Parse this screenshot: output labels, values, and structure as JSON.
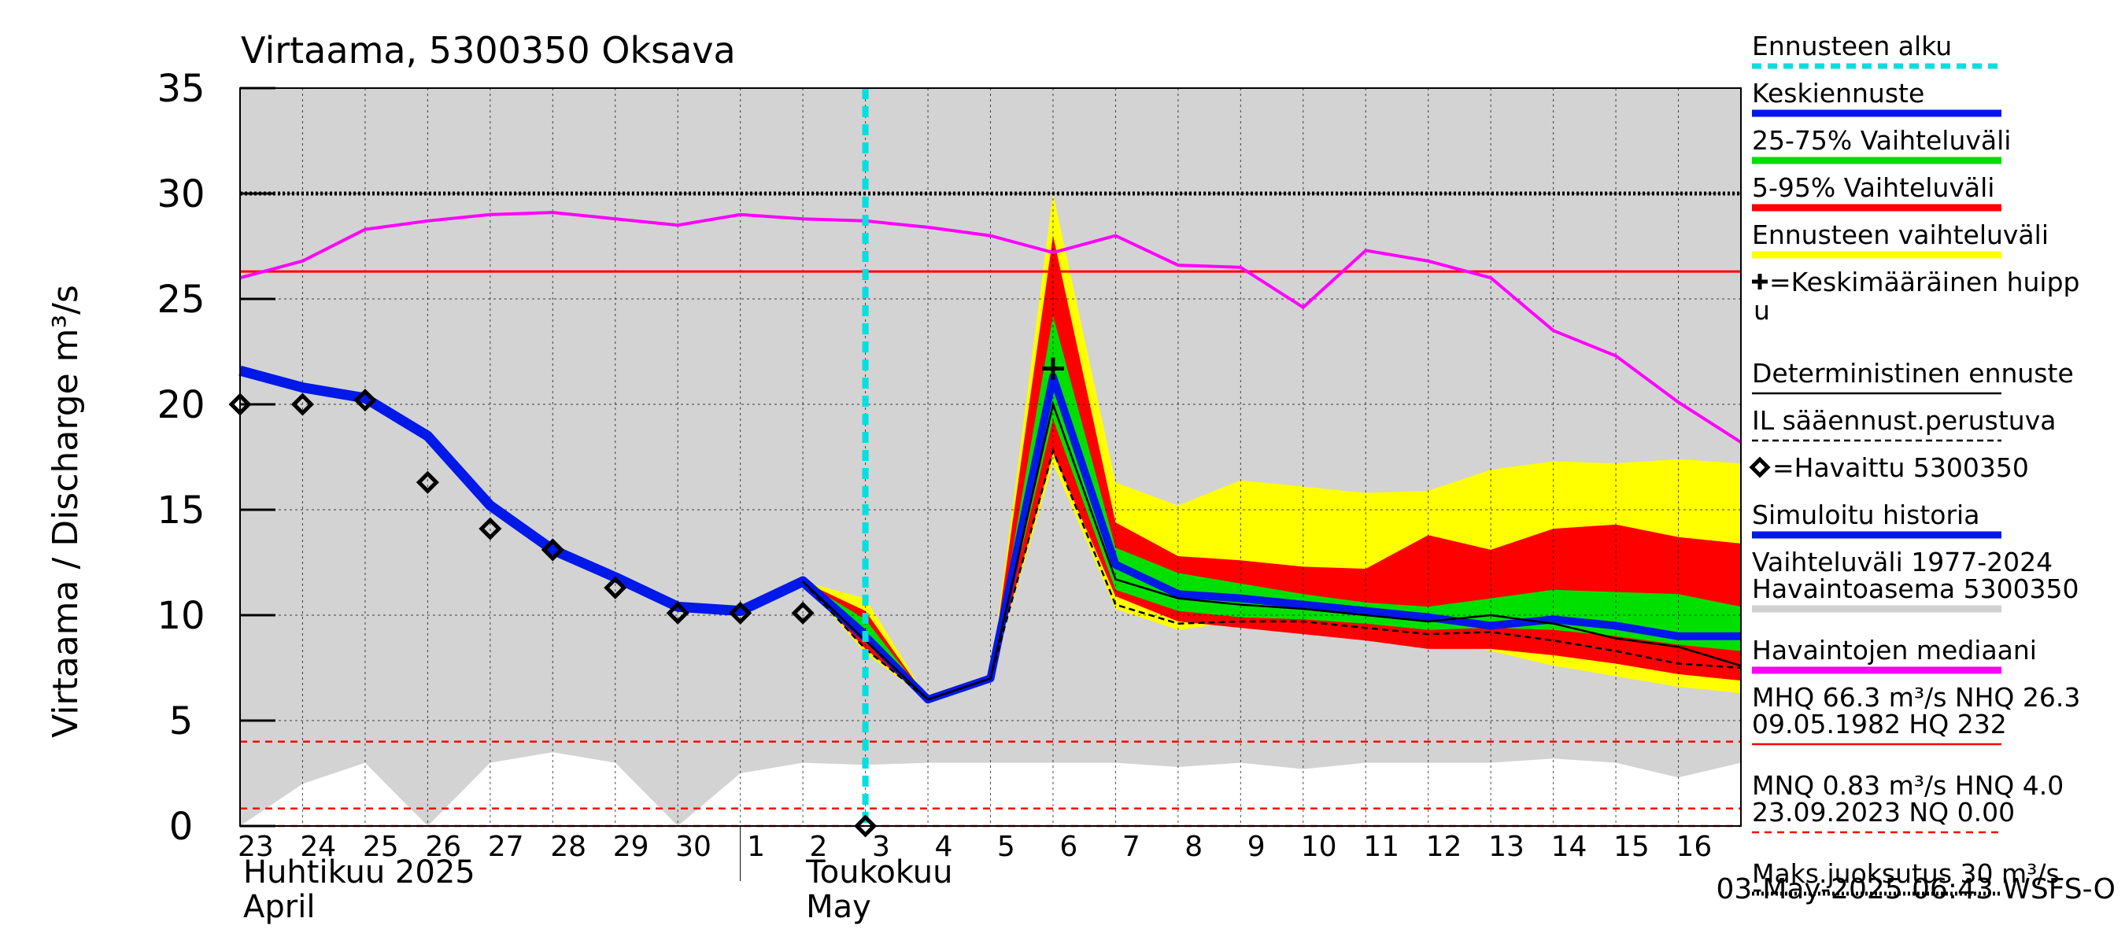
{
  "chart_data": {
    "type": "line",
    "title": "Virtaama, 5300350 Oksava",
    "ylabel": "Virtaama / Discharge   m³/s",
    "ylim": [
      0,
      35
    ],
    "yticks": [
      0,
      5,
      10,
      15,
      20,
      25,
      30,
      35
    ],
    "xlim_day_index": [
      0,
      24
    ],
    "x_day_labels": [
      "23",
      "24",
      "25",
      "26",
      "27",
      "28",
      "29",
      "30",
      "1",
      "2",
      "3",
      "4",
      "5",
      "6",
      "7",
      "8",
      "9",
      "10",
      "11",
      "12",
      "13",
      "14",
      "15",
      "16"
    ],
    "month_labels": [
      {
        "text": "Huhtikuu  2025",
        "sub": "April"
      },
      {
        "text": "Toukokuu",
        "sub": "May"
      }
    ],
    "forecast_start_day": 10,
    "reference_lines": {
      "mhq": 26.3,
      "maks_juoksutus": 30,
      "mnq_red_dashed": 4.0,
      "low_red_dashed": 0.83
    },
    "history_range": {
      "x": [
        0,
        1,
        2,
        3,
        4,
        5,
        6,
        7,
        8,
        9,
        10,
        11,
        12,
        13,
        14,
        15,
        16,
        17,
        18,
        19,
        20,
        21,
        22,
        23,
        24
      ],
      "low": [
        0,
        2.0,
        3.0,
        0,
        3.0,
        3.5,
        3.0,
        0,
        2.5,
        3.0,
        2.9,
        3.0,
        3.0,
        3.0,
        3.0,
        2.8,
        3.0,
        2.7,
        3.0,
        3.0,
        3.0,
        3.2,
        3.0,
        2.3,
        3.0
      ],
      "high": [
        35,
        35,
        35,
        35,
        35,
        35,
        35,
        35,
        35,
        35,
        35,
        35,
        35,
        35,
        35,
        35,
        35,
        35,
        35,
        35,
        35,
        35,
        35,
        35,
        35
      ]
    },
    "median_history": {
      "x": [
        0,
        1,
        2,
        3,
        4,
        5,
        6,
        7,
        8,
        9,
        10,
        11,
        12,
        13,
        14,
        15,
        16,
        17,
        18,
        19,
        20,
        21,
        22,
        23,
        24
      ],
      "y": [
        26.0,
        26.8,
        28.3,
        28.7,
        29.0,
        29.1,
        28.8,
        28.5,
        29.0,
        28.8,
        28.7,
        28.4,
        28.0,
        27.2,
        28.0,
        26.6,
        26.5,
        24.6,
        27.3,
        26.8,
        26.0,
        23.5,
        22.3,
        20.1,
        18.2
      ]
    },
    "simulated_history": {
      "x": [
        0,
        1,
        2,
        3,
        4,
        5,
        6,
        7,
        8,
        9,
        10
      ],
      "y": [
        21.6,
        20.8,
        20.3,
        18.5,
        15.2,
        13.1,
        11.8,
        10.4,
        10.2,
        11.6,
        9.0
      ]
    },
    "observed": {
      "name": "Havaittu 5300350",
      "x": [
        0,
        1,
        2,
        3,
        4,
        5,
        6,
        7,
        8,
        9,
        10
      ],
      "y": [
        20.0,
        20.0,
        20.2,
        16.3,
        14.1,
        13.1,
        11.3,
        10.1,
        10.1,
        10.1,
        0.0
      ]
    },
    "forecast_x": [
      9,
      10,
      11,
      12,
      13,
      14,
      15,
      16,
      17,
      18,
      19,
      20,
      21,
      22,
      23,
      24
    ],
    "forecast_range_yellow": {
      "low": [
        11.6,
        8.2,
        6.0,
        7.0,
        17.2,
        10.3,
        9.3,
        9.7,
        9.5,
        9.2,
        8.8,
        8.3,
        7.6,
        7.1,
        6.6,
        6.3
      ],
      "high": [
        11.6,
        10.8,
        6.0,
        7.0,
        30.0,
        16.3,
        15.2,
        16.4,
        16.1,
        15.8,
        15.9,
        16.9,
        17.3,
        17.2,
        17.4,
        17.2
      ]
    },
    "forecast_range_red_5_95": {
      "low": [
        11.6,
        8.4,
        6.0,
        7.0,
        17.7,
        10.9,
        9.7,
        9.4,
        9.1,
        8.8,
        8.4,
        8.4,
        8.1,
        7.7,
        7.2,
        6.9
      ],
      "high": [
        11.6,
        10.2,
        6.0,
        7.0,
        28.0,
        14.4,
        12.8,
        12.6,
        12.3,
        12.2,
        13.8,
        13.1,
        14.1,
        14.3,
        13.7,
        13.4
      ]
    },
    "forecast_range_green_25_75": {
      "low": [
        11.6,
        8.7,
        6.0,
        7.0,
        19.3,
        11.2,
        10.2,
        9.9,
        9.8,
        9.6,
        9.3,
        9.4,
        9.3,
        9.0,
        8.6,
        8.3
      ],
      "high": [
        11.6,
        9.8,
        6.0,
        7.0,
        24.2,
        13.2,
        12.0,
        11.5,
        11.0,
        10.6,
        10.4,
        10.8,
        11.2,
        11.1,
        11.0,
        10.4
      ]
    },
    "mean_forecast": {
      "name": "Keskiennuste",
      "x": [
        9,
        10,
        11,
        12,
        13,
        14,
        15,
        16,
        17,
        18,
        19,
        20,
        21,
        22,
        23,
        24
      ],
      "y": [
        11.6,
        9.0,
        6.0,
        7.0,
        21.3,
        12.4,
        11.0,
        10.8,
        10.5,
        10.2,
        9.9,
        9.5,
        9.8,
        9.5,
        9.0,
        9.0
      ]
    },
    "deterministic_forecast": {
      "name": "Deterministinen ennuste",
      "x": [
        9,
        10,
        11,
        12,
        13,
        14,
        15,
        16,
        17,
        18,
        19,
        20,
        21,
        22,
        23,
        24
      ],
      "y": [
        11.6,
        8.8,
        6.0,
        7.0,
        20.0,
        11.7,
        10.8,
        10.5,
        10.3,
        10.0,
        9.7,
        10.0,
        9.6,
        8.9,
        8.5,
        7.6
      ]
    },
    "il_weather_forecast": {
      "name": "IL sääennust.perustuva",
      "x": [
        9,
        10,
        11,
        12,
        13,
        14,
        15,
        16,
        17,
        18,
        19,
        20,
        21,
        22,
        23,
        24
      ],
      "y": [
        11.6,
        8.4,
        6.0,
        7.0,
        17.8,
        10.5,
        9.6,
        9.7,
        9.7,
        9.4,
        9.1,
        9.2,
        8.8,
        8.3,
        7.7,
        7.5
      ]
    },
    "mean_peak": {
      "x": 13,
      "y": 21.7
    },
    "legend": [
      {
        "label": "Ennusteen alku",
        "style": "dotted",
        "color": "#00e0e0"
      },
      {
        "label": "Keskiennuste",
        "style": "line",
        "color": "#0018e8"
      },
      {
        "label": "25-75% Vaihteluväli",
        "style": "line",
        "color": "#00e000"
      },
      {
        "label": "5-95% Vaihteluväli",
        "style": "line",
        "color": "#ff0000"
      },
      {
        "label": "Ennusteen vaihteluväli",
        "style": "line",
        "color": "#ffff00"
      },
      {
        "label": "=Keskimääräinen huipp",
        "label2": "u",
        "style": "plus",
        "color": "#000000"
      },
      {
        "label": "Deterministinen ennuste",
        "style": "thin",
        "color": "#000000"
      },
      {
        "label": "IL sääennust.perustuva",
        "style": "dashed",
        "color": "#000000"
      },
      {
        "label": "=Havaittu 5300350",
        "style": "diamond",
        "color": "#000000"
      },
      {
        "label": "Simuloitu historia",
        "style": "line",
        "color": "#0018e8"
      },
      {
        "label": "Vaihteluväli 1977-2024",
        "label2": " Havaintoasema 5300350",
        "style": "line",
        "color": "#d0d0d0"
      },
      {
        "label": "Havaintojen mediaani",
        "style": "line",
        "color": "#ff00ff"
      },
      {
        "label": "MHQ 66.3 m³/s NHQ 26.3",
        "label2": "09.05.1982 HQ  232",
        "style": "thin",
        "color": "#ff0000"
      },
      {
        "label": "MNQ 0.83 m³/s HNQ  4.0",
        "label2": "23.09.2023 NQ 0.00",
        "style": "dashedred",
        "color": "#ff0000"
      },
      {
        "label": "Maks.juoksutus 30 m³/s",
        "style": "dottedblack",
        "color": "#000000"
      }
    ],
    "footer": "03-May-2025 06:43 WSFS-O"
  }
}
